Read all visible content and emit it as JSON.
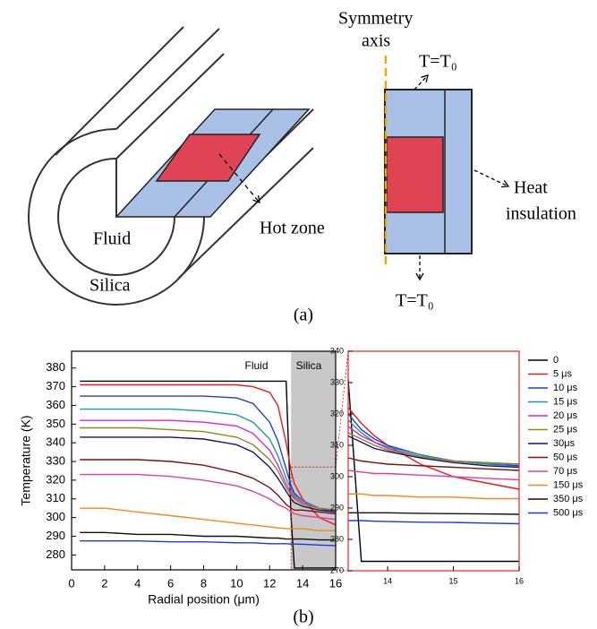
{
  "figure_a": {
    "symmetry_axis": [
      "Symmetry",
      "axis"
    ],
    "top_boundary": "T=T₀",
    "bottom_boundary": "T=T₀",
    "heat_insulation": [
      "Heat",
      "insulation"
    ],
    "hot_zone": "Hot zone",
    "fluid": "Fluid",
    "silica": "Silica",
    "caption": "(a)"
  },
  "figure_b_caption": "(b)",
  "chart_data": [
    {
      "type": "line",
      "xlabel": "Radial position (μm)",
      "ylabel": "Temperature (K)",
      "annotations": [
        "Fluid",
        "Silica"
      ],
      "xlim": [
        0,
        16
      ],
      "ylim": [
        272,
        389
      ],
      "xticks": [
        0,
        2,
        4,
        6,
        8,
        10,
        12,
        14,
        16
      ],
      "yticks": [
        280,
        290,
        300,
        310,
        320,
        330,
        340,
        350,
        360,
        370,
        380
      ],
      "frame_color": "#000000",
      "legend": "outside-right",
      "shaded_region": {
        "x": [
          13.3,
          16
        ],
        "color": "#c8c8c8"
      },
      "zoom_box": {
        "x": [
          13.3,
          16
        ],
        "y": [
          272,
          327
        ],
        "color": "#e8262b"
      },
      "x": [
        0.5,
        2,
        4,
        6,
        8,
        10,
        11,
        12,
        12.5,
        13,
        13.3,
        13.5,
        14,
        15,
        16
      ],
      "series": [
        {
          "name": "0",
          "color": "#000000",
          "values": [
            373,
            373,
            373,
            373,
            373,
            373,
            373,
            373,
            373,
            373,
            300,
            273,
            273,
            273,
            273
          ]
        },
        {
          "name": "5 μs",
          "color": "#e41a1c",
          "values": [
            371,
            371,
            371,
            371,
            371,
            371,
            370,
            367,
            360,
            340,
            325,
            318,
            310,
            300,
            296
          ]
        },
        {
          "name": "10 μs",
          "color": "#1f3fd6",
          "values": [
            365,
            365,
            365,
            365,
            365,
            364,
            361,
            351,
            341,
            326,
            317,
            313,
            309,
            305,
            303
          ]
        },
        {
          "name": "15 μs",
          "color": "#1a9a9a",
          "values": [
            358,
            358,
            358,
            358,
            357,
            355,
            351,
            342,
            333,
            321,
            315,
            312,
            309,
            305,
            304
          ]
        },
        {
          "name": "20 μs",
          "color": "#e020d0",
          "values": [
            352,
            352,
            352,
            352,
            351,
            349,
            345,
            336,
            328,
            318,
            313,
            311,
            308,
            305,
            304
          ]
        },
        {
          "name": "25 μs",
          "color": "#8a8a1a",
          "values": [
            348,
            348,
            348,
            347,
            346,
            343,
            339,
            331,
            325,
            316,
            312,
            310,
            307,
            305,
            304
          ]
        },
        {
          "name": "30μs",
          "color": "#14146e",
          "values": [
            343,
            343,
            343,
            343,
            342,
            339,
            335,
            327,
            321,
            314,
            310,
            308,
            306,
            304,
            303
          ]
        },
        {
          "name": "50 μs",
          "color": "#7a1010",
          "values": [
            331,
            331,
            331,
            330,
            328,
            324,
            321,
            316,
            312,
            307,
            305,
            304,
            304,
            303,
            302
          ]
        },
        {
          "name": "70 μs",
          "color": "#e0409a",
          "values": [
            323,
            323,
            323,
            322,
            320,
            317,
            314,
            310,
            307,
            305,
            303,
            302,
            301,
            300,
            299
          ]
        },
        {
          "name": "150 μs",
          "color": "#f08a1a",
          "values": [
            305,
            305,
            303,
            301,
            299,
            297,
            296,
            295,
            294.5,
            294,
            294,
            294,
            294,
            293,
            293
          ]
        },
        {
          "name": "350 μs",
          "color": "#111111",
          "values": [
            292,
            292,
            291,
            291,
            290,
            290,
            289.5,
            289,
            289,
            288.5,
            288.5,
            288.5,
            288.5,
            288,
            288
          ]
        },
        {
          "name": "500 μs",
          "color": "#1a3ae0",
          "values": [
            287.5,
            287.5,
            287.5,
            287,
            287,
            286.5,
            286.5,
            286,
            286,
            286,
            285.8,
            285.8,
            285.7,
            285.3,
            285
          ]
        }
      ]
    },
    {
      "type": "line",
      "xlim": [
        13.4,
        16
      ],
      "ylim": [
        270,
        340
      ],
      "xticks": [
        14,
        15,
        16
      ],
      "yticks": [
        270,
        280,
        290,
        300,
        310,
        320,
        330,
        340
      ],
      "frame_color": "#e8262b",
      "x": [
        13.4,
        13.6,
        13.8,
        14,
        14.5,
        15,
        15.5,
        16
      ],
      "series": [
        {
          "color": "#000000",
          "values": [
            331,
            273,
            273,
            273,
            273,
            273,
            273,
            273
          ]
        },
        {
          "color": "#e41a1c",
          "values": [
            322,
            317,
            313,
            310,
            304,
            300,
            298,
            296
          ]
        },
        {
          "color": "#1f3fd6",
          "values": [
            320,
            315,
            312,
            310,
            307,
            305,
            304,
            303.5
          ]
        },
        {
          "color": "#1a9a9a",
          "values": [
            318,
            314,
            311,
            309.5,
            307,
            305,
            304,
            304
          ]
        },
        {
          "color": "#e020d0",
          "values": [
            316,
            313,
            311,
            309,
            306.5,
            305,
            304.5,
            304
          ]
        },
        {
          "color": "#8a8a1a",
          "values": [
            314,
            312,
            310,
            308.5,
            306.5,
            305,
            304.5,
            304
          ]
        },
        {
          "color": "#14146e",
          "values": [
            313,
            311,
            309,
            308,
            306,
            304.5,
            303.5,
            303
          ]
        },
        {
          "color": "#7a1010",
          "values": [
            306,
            305,
            304.5,
            304,
            303.5,
            303,
            302.5,
            302
          ]
        },
        {
          "color": "#e0409a",
          "values": [
            302,
            301.5,
            301,
            301,
            300.5,
            300,
            299.5,
            299
          ]
        },
        {
          "color": "#f08a1a",
          "values": [
            294.5,
            294.5,
            294,
            294,
            293.5,
            293.5,
            293,
            293
          ]
        },
        {
          "color": "#111111",
          "values": [
            288.5,
            288.5,
            288.5,
            288.5,
            288.3,
            288.2,
            288.1,
            288
          ]
        },
        {
          "color": "#1a3ae0",
          "values": [
            286,
            286,
            285.8,
            285.7,
            285.5,
            285.4,
            285.2,
            285
          ]
        }
      ]
    }
  ]
}
